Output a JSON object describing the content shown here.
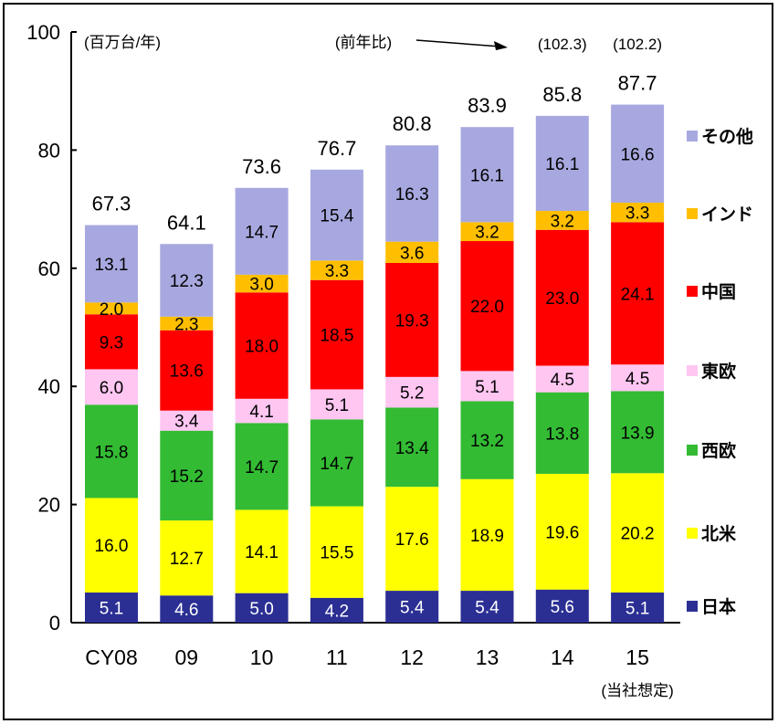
{
  "chart_data": {
    "type": "bar",
    "stacked": true,
    "categories": [
      "CY08",
      "09",
      "10",
      "11",
      "12",
      "13",
      "14",
      "15"
    ],
    "series": [
      {
        "name": "日本",
        "color": "#2b2f94",
        "label_color": "#ffffff",
        "values": [
          "5.1",
          "4.6",
          "5.0",
          "4.2",
          "5.4",
          "5.4",
          "5.6",
          "5.1"
        ]
      },
      {
        "name": "北米",
        "color": "#ffff00",
        "label_color": "#000000",
        "values": [
          "16.0",
          "12.7",
          "14.1",
          "15.5",
          "17.6",
          "18.9",
          "19.6",
          "20.2"
        ]
      },
      {
        "name": "西欧",
        "color": "#33bb33",
        "label_color": "#000000",
        "values": [
          "15.8",
          "15.2",
          "14.7",
          "14.7",
          "13.4",
          "13.2",
          "13.8",
          "13.9"
        ]
      },
      {
        "name": "東欧",
        "color": "#ffc6f2",
        "label_color": "#000000",
        "values": [
          "6.0",
          "3.4",
          "4.1",
          "5.1",
          "5.2",
          "5.1",
          "4.5",
          "4.5"
        ]
      },
      {
        "name": "中国",
        "color": "#ff0000",
        "label_color": "#000000",
        "values": [
          "9.3",
          "13.6",
          "18.0",
          "18.5",
          "19.3",
          "22.0",
          "23.0",
          "24.1"
        ]
      },
      {
        "name": "インド",
        "color": "#ffbf00",
        "label_color": "#000000",
        "values": [
          "2.0",
          "2.3",
          "3.0",
          "3.3",
          "3.6",
          "3.2",
          "3.2",
          "3.3"
        ]
      },
      {
        "name": "その他",
        "color": "#a8a8e0",
        "label_color": "#000000",
        "values": [
          "13.1",
          "12.3",
          "14.7",
          "15.4",
          "16.3",
          "16.1",
          "16.1",
          "16.6"
        ]
      }
    ],
    "totals": [
      "67.3",
      "64.1",
      "73.6",
      "76.7",
      "80.8",
      "83.9",
      "85.8",
      "87.7"
    ],
    "yoy": {
      "label": "(前年比)",
      "values": {
        "14": "(102.3)",
        "15": "(102.2)"
      }
    },
    "unit_label": "(百万台/年)",
    "x_note": "(当社想定)",
    "ylim": [
      0,
      100
    ],
    "yticks": [
      "0",
      "20",
      "40",
      "60",
      "80",
      "100"
    ],
    "legend_placement": "right",
    "grid": false
  }
}
